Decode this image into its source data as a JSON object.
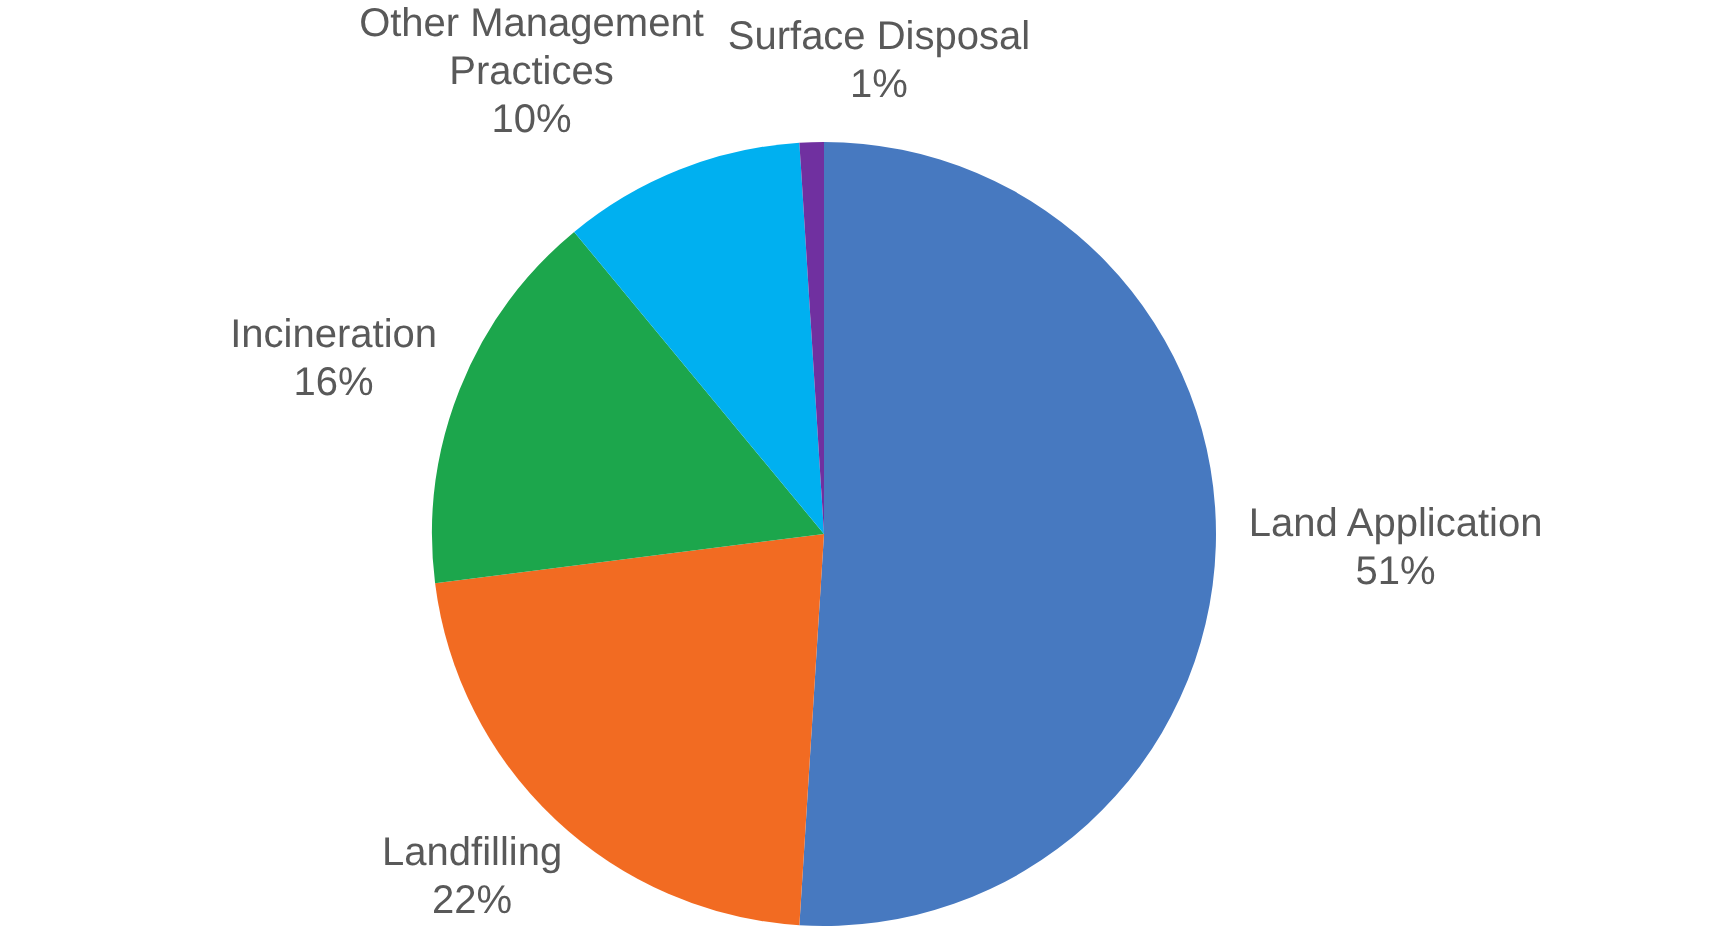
{
  "chart_data": {
    "type": "pie",
    "categories": [
      "Land Application",
      "Landfilling",
      "Incineration",
      "Other Management Practices",
      "Surface Disposal"
    ],
    "values": [
      51,
      22,
      16,
      10,
      1
    ],
    "value_labels": [
      "51%",
      "22%",
      "16%",
      "10%",
      "1%"
    ],
    "colors": [
      "#4779c0",
      "#f26b22",
      "#1ca64c",
      "#00b0f0",
      "#7030a0"
    ],
    "legend": false
  }
}
